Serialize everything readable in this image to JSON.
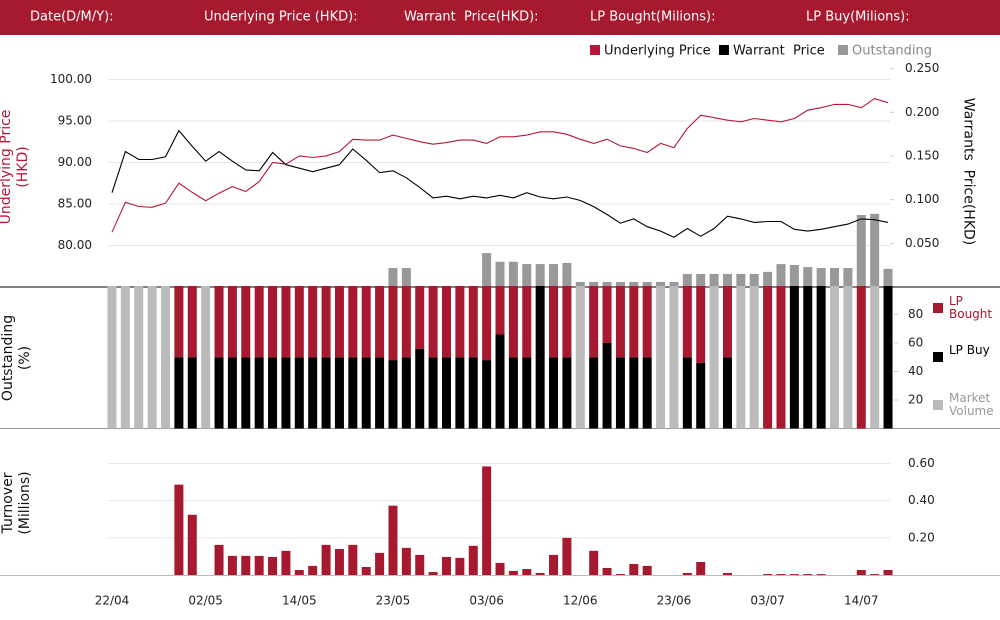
{
  "header": {
    "labels": [
      "Date(D/M/Y):",
      "Underlying Price (HKD):",
      "Warrant  Price(HKD):",
      "LP Bought(Milions):",
      "LP Buy(Milions):"
    ]
  },
  "chart_data": [
    {
      "type": "line",
      "y_label": "Underlying Price (HKD)",
      "y2_label": "Warrants  Price(HKD)",
      "ylim": [
        75,
        102.625
      ],
      "yticks": [
        {
          "value": 80,
          "label": "80.00"
        },
        {
          "value": 85,
          "label": "85.00"
        },
        {
          "value": 90,
          "label": "90.00"
        },
        {
          "value": 95,
          "label": "95.00"
        },
        {
          "value": 100,
          "label": "100.00"
        }
      ],
      "y2lim": [
        0,
        0.2625
      ],
      "y2ticks": [
        {
          "value": 0.05,
          "label": "0.050"
        },
        {
          "value": 0.1,
          "label": "0.100"
        },
        {
          "value": 0.15,
          "label": "0.150"
        },
        {
          "value": 0.2,
          "label": "0.200"
        },
        {
          "value": 0.25,
          "label": "0.250"
        }
      ],
      "y3lim": [
        0,
        100
      ],
      "grid": true,
      "series": [
        {
          "name": "Underlying Price",
          "color": "#b5173a",
          "axis": "y",
          "values": [
            81.6,
            85.2,
            84.7,
            84.6,
            85.1,
            87.5,
            86.4,
            85.4,
            86.3,
            87.1,
            86.5,
            87.7,
            90.0,
            89.8,
            90.8,
            90.6,
            90.8,
            91.3,
            92.8,
            92.7,
            92.7,
            93.3,
            92.9,
            92.5,
            92.2,
            92.4,
            92.7,
            92.7,
            92.3,
            93.1,
            93.1,
            93.3,
            93.7,
            93.7,
            93.4,
            92.8,
            92.3,
            92.8,
            92.0,
            91.7,
            91.2,
            92.3,
            91.8,
            94.1,
            95.7,
            95.4,
            95.1,
            94.9,
            95.3,
            95.1,
            94.9,
            95.3,
            96.3,
            96.6,
            97.0,
            97.0,
            96.6,
            97.7,
            97.2
          ]
        },
        {
          "name": "Warrant  Price",
          "color": "#000000",
          "axis": "y2",
          "values": [
            0.108,
            0.155,
            0.146,
            0.146,
            0.149,
            0.179,
            0.161,
            0.144,
            0.155,
            0.144,
            0.134,
            0.133,
            0.154,
            0.14,
            0.136,
            0.132,
            0.136,
            0.14,
            0.158,
            0.145,
            0.131,
            0.133,
            0.125,
            0.114,
            0.102,
            0.104,
            0.101,
            0.104,
            0.102,
            0.105,
            0.102,
            0.108,
            0.103,
            0.101,
            0.103,
            0.099,
            0.092,
            0.083,
            0.073,
            0.078,
            0.069,
            0.064,
            0.057,
            0.067,
            0.058,
            0.067,
            0.081,
            0.078,
            0.074,
            0.075,
            0.075,
            0.066,
            0.064,
            0.066,
            0.069,
            0.072,
            0.078,
            0.077,
            0.074
          ]
        },
        {
          "name": "Outstanding",
          "color": "#999999",
          "axis": "y3",
          "values": [
            0,
            0,
            0,
            0,
            0,
            0,
            0,
            0,
            0,
            0,
            0,
            0,
            0,
            0,
            0,
            0,
            0,
            0,
            0,
            0,
            0,
            8.3,
            8.3,
            0,
            0,
            0,
            0,
            0,
            14.8,
            11,
            11,
            10,
            10,
            10,
            10.5,
            2.2,
            2.2,
            2.2,
            2.2,
            2.2,
            2.2,
            2.2,
            2.2,
            5.7,
            5.7,
            5.7,
            5.7,
            5.7,
            5.7,
            6.6,
            10,
            9.6,
            8.7,
            8.3,
            8.3,
            8.3,
            31.4,
            31.9,
            7.9
          ]
        }
      ]
    },
    {
      "type": "stacked_bar",
      "y_label": "Outstanding (%)",
      "ylim": [
        0,
        100
      ],
      "yticks": [
        20,
        40,
        60,
        80
      ],
      "series": [
        {
          "name": "LP Buy",
          "color": "#000000",
          "values": [
            0,
            0,
            0,
            0,
            0,
            50,
            50,
            0,
            50,
            50,
            50,
            50,
            50,
            50,
            50,
            50,
            50,
            50,
            50,
            50,
            50,
            48,
            50,
            56,
            50,
            50,
            50,
            50,
            48,
            66,
            50,
            50,
            100,
            50,
            50,
            0,
            50,
            60,
            50,
            50,
            50,
            0,
            0,
            50,
            46,
            0,
            50,
            0,
            0,
            0,
            0,
            100,
            100,
            100,
            0,
            0,
            0,
            0,
            100
          ]
        },
        {
          "name": "LP Bought",
          "color": "#a6192e",
          "values": [
            0,
            0,
            0,
            0,
            0,
            50,
            50,
            0,
            50,
            50,
            50,
            50,
            50,
            50,
            50,
            50,
            50,
            50,
            50,
            50,
            50,
            52,
            50,
            44,
            50,
            50,
            50,
            50,
            52,
            34,
            50,
            50,
            0,
            50,
            50,
            0,
            50,
            40,
            50,
            50,
            50,
            0,
            0,
            50,
            54,
            0,
            50,
            0,
            0,
            100,
            100,
            0,
            0,
            0,
            0,
            0,
            100,
            0,
            0
          ]
        },
        {
          "name": "Market Volume",
          "color": "#bbbbbb",
          "values": [
            100,
            100,
            100,
            100,
            100,
            0,
            0,
            100,
            0,
            0,
            0,
            0,
            0,
            0,
            0,
            0,
            0,
            0,
            0,
            0,
            0,
            0,
            0,
            0,
            0,
            0,
            0,
            0,
            0,
            0,
            0,
            0,
            0,
            0,
            0,
            100,
            0,
            0,
            0,
            0,
            0,
            100,
            100,
            0,
            0,
            100,
            0,
            100,
            100,
            0,
            0,
            0,
            0,
            0,
            100,
            100,
            0,
            100,
            0
          ]
        }
      ]
    },
    {
      "type": "bar",
      "y_label": "Turnover (Millions)",
      "color": "#a6192e",
      "ylim": [
        0,
        0.78
      ],
      "yticks": [
        {
          "value": 0.2,
          "label": "0.20"
        },
        {
          "value": 0.4,
          "label": "0.40"
        },
        {
          "value": 0.6,
          "label": "0.60"
        }
      ],
      "grid": true,
      "categories": [
        "22/04",
        null,
        null,
        null,
        null,
        null,
        null,
        "02/05",
        null,
        null,
        null,
        null,
        null,
        null,
        "14/05",
        null,
        null,
        null,
        null,
        null,
        null,
        "23/05",
        null,
        null,
        null,
        null,
        null,
        null,
        "03/06",
        null,
        null,
        null,
        null,
        null,
        null,
        "12/06",
        null,
        null,
        null,
        null,
        null,
        null,
        "23/06",
        null,
        null,
        null,
        null,
        null,
        null,
        "03/07",
        null,
        null,
        null,
        null,
        null,
        null,
        "14/07",
        null,
        null
      ],
      "values": [
        0,
        0,
        0,
        0,
        0,
        0.486,
        0.324,
        0,
        0.162,
        0.103,
        0.103,
        0.103,
        0.097,
        0.13,
        0.027,
        0.049,
        0.162,
        0.14,
        0.162,
        0.043,
        0.119,
        0.373,
        0.146,
        0.108,
        0.016,
        0.097,
        0.092,
        0.157,
        0.584,
        0.065,
        0.022,
        0.032,
        0.011,
        0.108,
        0.2,
        0,
        0.13,
        0.038,
        0.005,
        0.059,
        0.049,
        0,
        0,
        0.011,
        0.07,
        0,
        0.011,
        0,
        0,
        0.005,
        0.005,
        0.005,
        0.005,
        0.005,
        0,
        0,
        0.027,
        0.005,
        0.027
      ]
    }
  ]
}
